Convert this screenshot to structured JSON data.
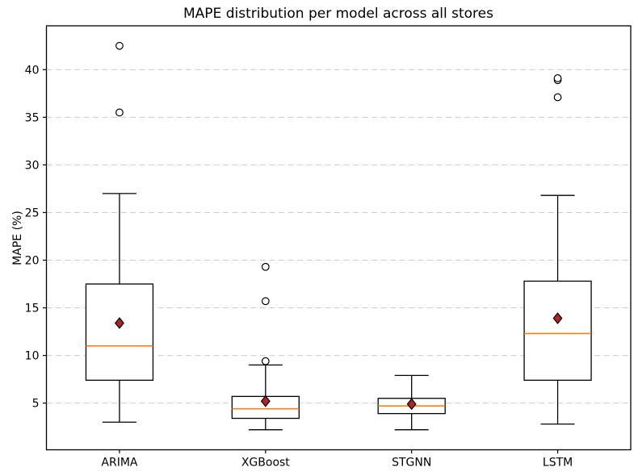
{
  "title": "MAPE distribution per model across all stores",
  "ylabel": "MAPE (%)",
  "chart_data": {
    "type": "boxplot",
    "title": "MAPE distribution per model across all stores",
    "xlabel": "",
    "ylabel": "MAPE (%)",
    "categories": [
      "ARIMA",
      "XGBoost",
      "STGNN",
      "LSTM"
    ],
    "yticks": [
      5,
      10,
      15,
      20,
      25,
      30,
      35,
      40
    ],
    "ylim": [
      0.1,
      44.6
    ],
    "grid": "horizontal-dashed",
    "legend": "none",
    "colors": {
      "box_edge": "#000000",
      "box_fill": "#ffffff",
      "median": "#ff7f0e",
      "mean_marker": "#b22222",
      "flier_edge": "#000000",
      "grid": "#cccccc",
      "background": "#ffffff"
    },
    "series": [
      {
        "name": "ARIMA",
        "whisker_low": 3.0,
        "q1": 7.4,
        "median": 11.0,
        "mean": 13.4,
        "q3": 17.5,
        "whisker_high": 27.0,
        "outliers": [
          35.5,
          42.5
        ]
      },
      {
        "name": "XGBoost",
        "whisker_low": 2.2,
        "q1": 3.4,
        "median": 4.4,
        "mean": 5.2,
        "q3": 5.7,
        "whisker_high": 9.0,
        "outliers": [
          9.4,
          15.7,
          19.3
        ]
      },
      {
        "name": "STGNN",
        "whisker_low": 2.2,
        "q1": 3.9,
        "median": 4.7,
        "mean": 4.9,
        "q3": 5.5,
        "whisker_high": 7.9,
        "outliers": []
      },
      {
        "name": "LSTM",
        "whisker_low": 2.8,
        "q1": 7.4,
        "median": 12.3,
        "mean": 13.9,
        "q3": 17.8,
        "whisker_high": 26.8,
        "outliers": [
          37.1,
          38.9,
          39.1
        ]
      }
    ]
  }
}
